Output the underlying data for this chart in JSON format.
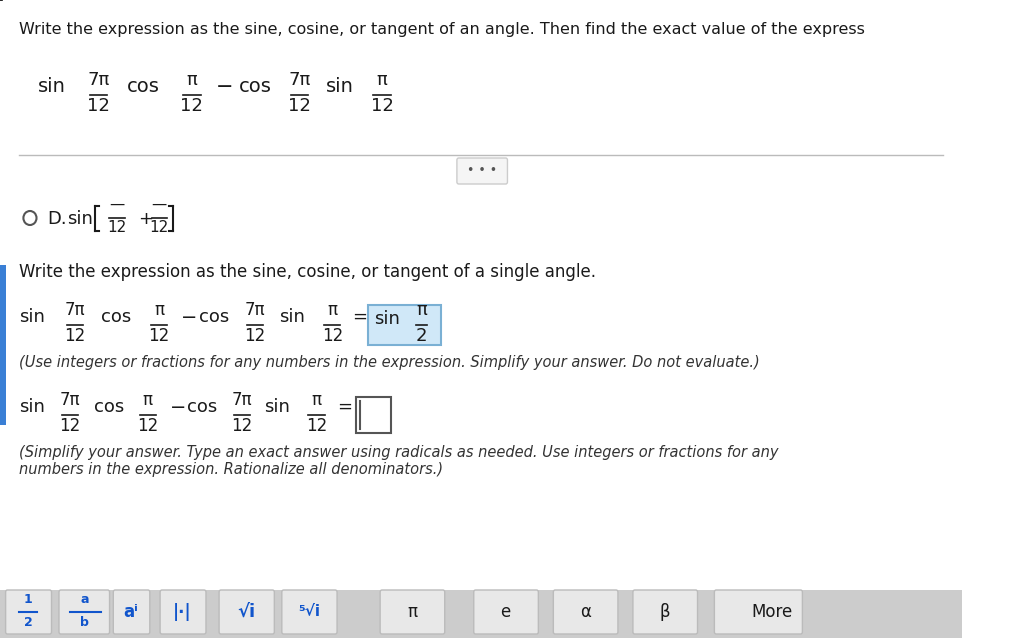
{
  "bg_color": "#f0f0f0",
  "white_bg": "#ffffff",
  "title_text": "Write the expression as the sine, cosine, or tangent of an angle. Then find the exact value of the express",
  "line1_left": "sin",
  "line1_frac1_num": "7π",
  "line1_frac1_den": "12",
  "line1_cos": "cos",
  "line1_frac2_num": "π",
  "line1_frac2_den": "12",
  "line1_minus": "−",
  "line1_cos2": "cos",
  "line1_frac3_num": "7π",
  "line1_frac3_den": "12",
  "line1_sin2": "sin",
  "line1_frac4_num": "π",
  "line1_frac4_den": "12",
  "dots_text": "• • •",
  "option_d_text": "D.",
  "option_d_math": "sin",
  "option_d_frac1": "12",
  "option_d_plus": "+",
  "option_d_frac2": "12",
  "write_single_text": "Write the expression as the sine, cosine, or tangent of a single angle.",
  "eq_line_left": "sin",
  "eq_frac1_num": "7π",
  "eq_frac1_den": "12",
  "eq_cos": "cos",
  "eq_frac2_num": "π",
  "eq_frac2_den": "12",
  "eq_minus": "−",
  "eq_cos2": "cos",
  "eq_frac3_num": "7π",
  "eq_frac3_den": "12",
  "eq_sin2": "sin",
  "eq_frac4_num": "π",
  "eq_frac4_den": "12",
  "eq_equals": "=",
  "eq_result_sin": "sin",
  "eq_result_frac_num": "π",
  "eq_result_frac_den": "2",
  "hint_text1": "(Use integers or fractions for any numbers in the expression. Simplify your answer. Do not evaluate.)",
  "eq2_line_left": "sin",
  "eq2_result_equals": "=",
  "answer_box_text": "",
  "hint_text2": "(Simplify your answer. Type an exact answer using radicals as needed. Use integers or fractions for any\nnumbers in the expression. Rationalize all denominators.)",
  "toolbar_buttons": [
    "½",
    "⅟",
    "∙",
    "|•|",
    "√•",
    "√•",
    "π",
    "e",
    "α",
    "β",
    "More"
  ],
  "left_bar_color": "#3a7fd5",
  "highlight_color": "#d0e8f8",
  "normal_text_color": "#1a1a1a",
  "hint_text_color": "#333333",
  "toolbar_bg": "#cccccc",
  "button_bg": "#e8e8e8",
  "button_border": "#bbbbbb"
}
